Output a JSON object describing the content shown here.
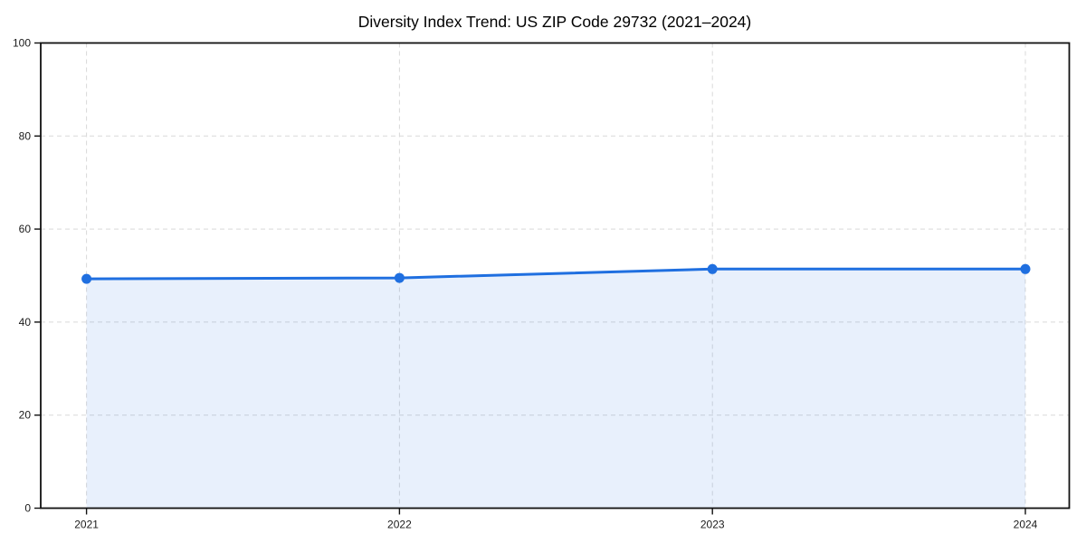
{
  "chart_data": {
    "type": "area",
    "title": "Diversity Index Trend: US ZIP Code 29732 (2021–2024)",
    "categories": [
      "2021",
      "2022",
      "2023",
      "2024"
    ],
    "values": [
      49.3,
      49.5,
      51.4,
      51.4
    ],
    "xlabel": "",
    "ylabel": "",
    "ylim": [
      0,
      100
    ],
    "yticks": [
      0,
      20,
      40,
      60,
      80,
      100
    ],
    "grid": true,
    "grid_style": "dashed",
    "legend": false,
    "marker": "circle",
    "colors": {
      "line": "#1f6fe0",
      "marker": "#1f6fe0",
      "fill": "rgba(31,111,224,0.10)",
      "grid": "#d9d9d9",
      "axis": "#111111",
      "text": "#1a1a1a",
      "background": "#ffffff"
    }
  }
}
